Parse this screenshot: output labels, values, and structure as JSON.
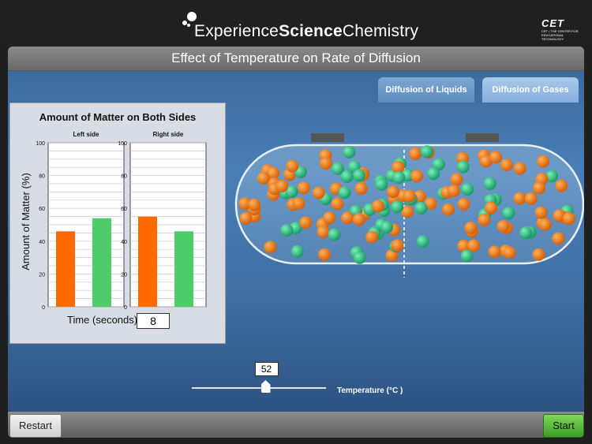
{
  "brand": {
    "prefix": "Experience",
    "bold": "Science",
    "suffix": "Chemistry"
  },
  "cet_logo": {
    "mark": "CET",
    "tagline": "CET • THE CENTER FOR EDUCATIONAL TECHNOLOGY"
  },
  "title": "Effect of Temperature on Rate of Diffusion",
  "tabs": [
    {
      "label": "Diffusion of Liquids"
    },
    {
      "label": "Diffusion of Gases"
    }
  ],
  "chart_data": {
    "type": "bar",
    "title": "Amount of Matter on Both Sides",
    "ylabel": "Amount of Matter (%)",
    "ylim": [
      0,
      100
    ],
    "yticks": [
      0,
      20,
      40,
      60,
      80,
      100
    ],
    "panels": [
      {
        "name": "Left side",
        "values": [
          46,
          54
        ]
      },
      {
        "name": "Right side",
        "values": [
          55,
          46
        ]
      }
    ],
    "series_colors": [
      "#ff6a00",
      "#4ecb6a"
    ]
  },
  "time": {
    "label": "Time (seconds)",
    "value": "8"
  },
  "temperature": {
    "value": "52",
    "label": "Temperature (°C )",
    "level": 0.55
  },
  "buttons": {
    "restart": "Restart",
    "start": "Start"
  },
  "colors": {
    "orange": "#e8780c",
    "green": "#2fb97d"
  }
}
